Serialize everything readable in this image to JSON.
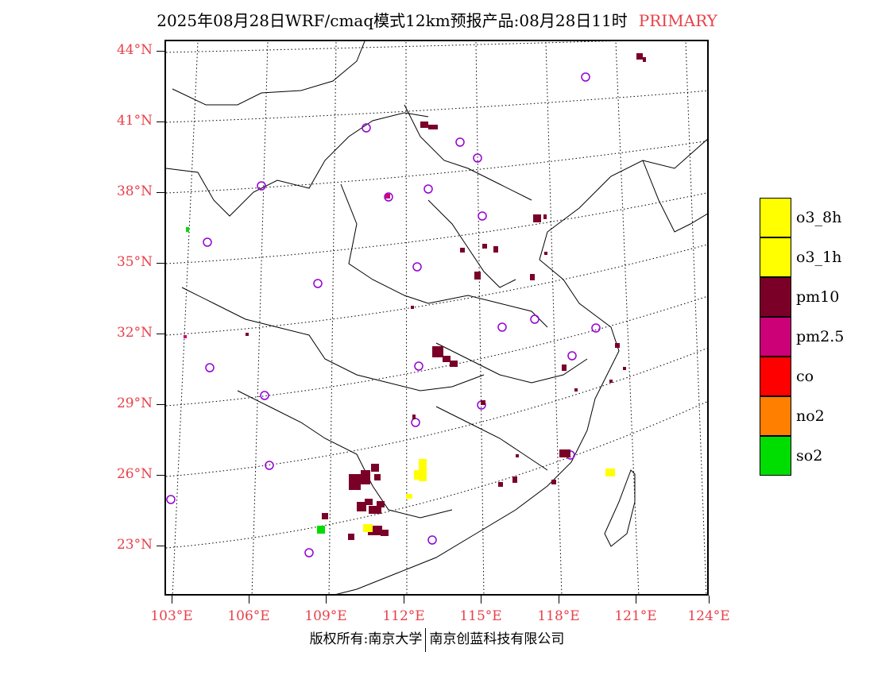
{
  "title": {
    "main": "2025年08月28日WRF/cmaq模式12km预报产品:08月28日11时",
    "tag": "PRIMARY",
    "tag_color": "#e8414a"
  },
  "axes": {
    "lat_labels": [
      "44°N",
      "41°N",
      "38°N",
      "35°N",
      "32°N",
      "29°N",
      "26°N",
      "23°N"
    ],
    "lon_labels": [
      "103°E",
      "106°E",
      "109°E",
      "112°E",
      "115°E",
      "118°E",
      "121°E",
      "124°E"
    ],
    "label_color": "#e8414a"
  },
  "legend": [
    {
      "label": "o3_8h",
      "color": "#ffff00"
    },
    {
      "label": "o3_1h",
      "color": "#ffff00"
    },
    {
      "label": "pm10",
      "color": "#7a0028"
    },
    {
      "label": "pm2.5",
      "color": "#cc0077"
    },
    {
      "label": "co",
      "color": "#ff0000"
    },
    {
      "label": "no2",
      "color": "#ff7f00"
    },
    {
      "label": "so2",
      "color": "#00dd00"
    }
  ],
  "footer": {
    "left": "版权所有:南京大学",
    "right": "南京创蓝科技有限公司"
  },
  "map_marks": {
    "station_color": "#9400d3",
    "pm10_color": "#7a0028",
    "o3_color": "#ffff00",
    "so2_color": "#00dd00",
    "pm25_color": "#cc0077"
  }
}
